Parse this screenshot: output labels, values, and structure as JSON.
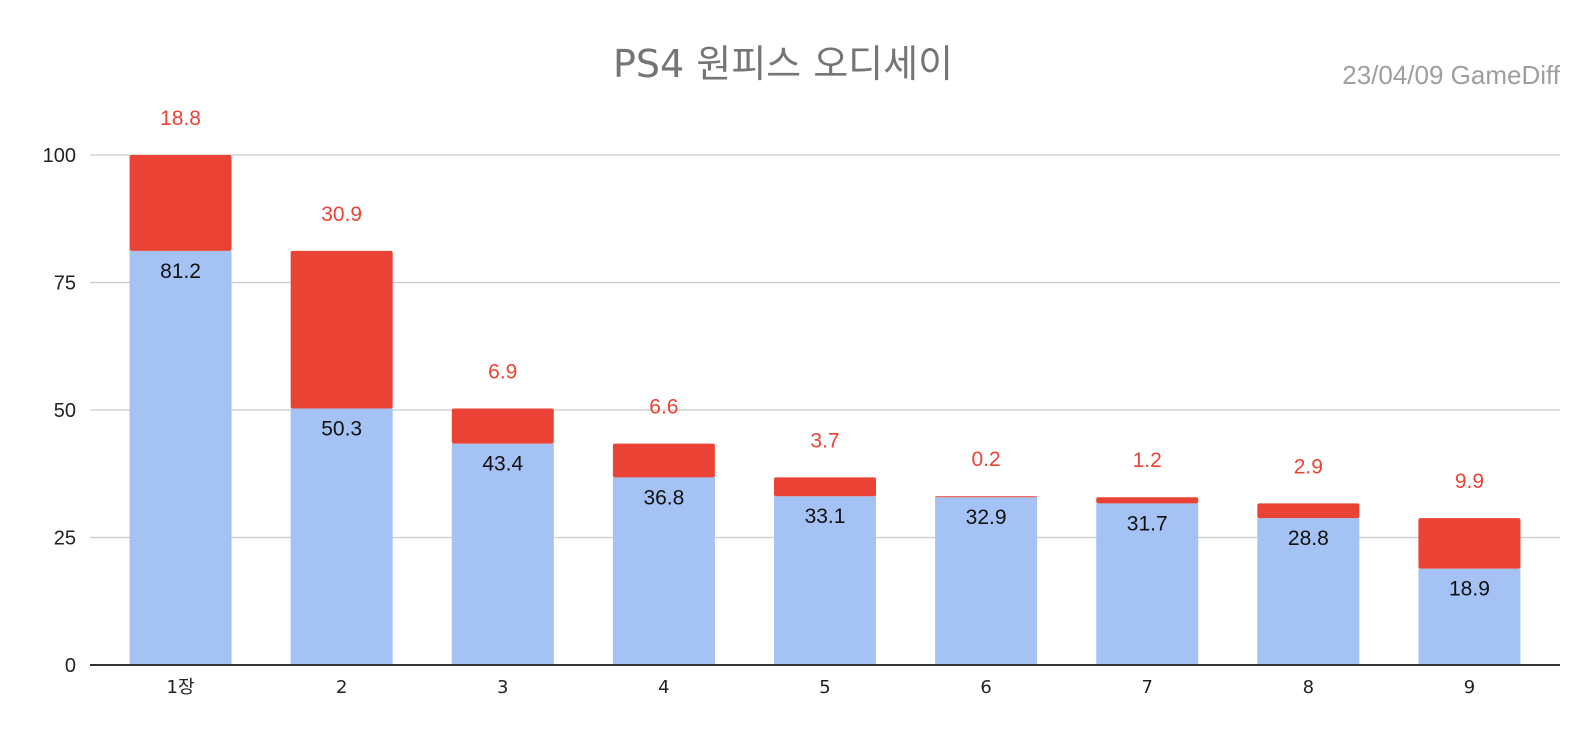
{
  "colors": {
    "base": "#a4c2f4",
    "top": "#ea4335",
    "grid": "#cccccc",
    "axis": "#333333",
    "title": "#757575",
    "subtitle": "#9e9e9e"
  },
  "chart_data": {
    "type": "bar",
    "stacked": true,
    "title": "PS4 원피스 오디세이",
    "subtitle": "23/04/09  GameDiff",
    "xlabel": "",
    "ylabel": "",
    "ylim": [
      0,
      100
    ],
    "yticks": [
      "0",
      "25",
      "50",
      "75",
      "100"
    ],
    "grid": true,
    "categories": [
      "1장",
      "2",
      "3",
      "4",
      "5",
      "6",
      "7",
      "8",
      "9"
    ],
    "series": [
      {
        "values": [
          81.2,
          50.3,
          43.4,
          36.8,
          33.1,
          32.9,
          31.7,
          28.8,
          18.9
        ],
        "labels": [
          "81.2",
          "50.3",
          "43.4",
          "36.8",
          "33.1",
          "32.9",
          "31.7",
          "28.8",
          "18.9"
        ]
      },
      {
        "values": [
          18.8,
          30.9,
          6.9,
          6.6,
          3.7,
          0.2,
          1.2,
          2.9,
          9.9
        ],
        "labels": [
          "18.8",
          "30.9",
          "6.9",
          "6.6",
          "3.7",
          "0.2",
          "1.2",
          "2.9",
          "9.9"
        ]
      }
    ]
  }
}
